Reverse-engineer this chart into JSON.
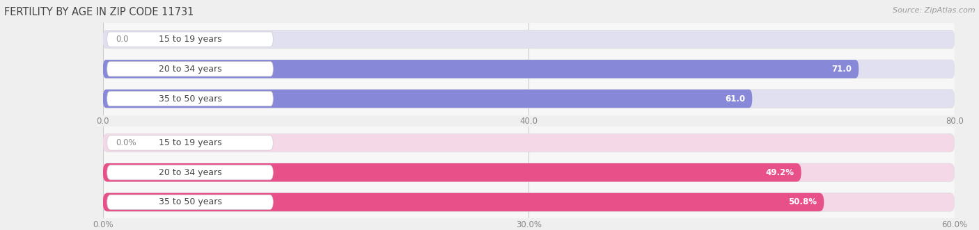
{
  "title": "FERTILITY BY AGE IN ZIP CODE 11731",
  "source": "Source: ZipAtlas.com",
  "top_chart": {
    "categories": [
      "15 to 19 years",
      "20 to 34 years",
      "35 to 50 years"
    ],
    "values": [
      0.0,
      71.0,
      61.0
    ],
    "value_labels": [
      "0.0",
      "71.0",
      "61.0"
    ],
    "xlim_max": 80.0,
    "xticks": [
      0.0,
      40.0,
      80.0
    ],
    "xtick_labels": [
      "0.0",
      "40.0",
      "80.0"
    ],
    "bar_color": "#8888d8",
    "bar_bg_color": "#e0e0f0",
    "label_bg_color": "#ffffff",
    "label_text_color": "#444444",
    "value_label_inside_color": "#ffffff",
    "value_label_outside_color": "#888888"
  },
  "bottom_chart": {
    "categories": [
      "15 to 19 years",
      "20 to 34 years",
      "35 to 50 years"
    ],
    "values": [
      0.0,
      49.2,
      50.8
    ],
    "value_labels": [
      "0.0%",
      "49.2%",
      "50.8%"
    ],
    "xlim_max": 60.0,
    "xticks": [
      0.0,
      30.0,
      60.0
    ],
    "xtick_labels": [
      "0.0%",
      "30.0%",
      "60.0%"
    ],
    "bar_color": "#e8508a",
    "bar_bg_color": "#f5d8e8",
    "label_bg_color": "#ffffff",
    "label_text_color": "#444444",
    "value_label_inside_color": "#ffffff",
    "value_label_outside_color": "#888888"
  },
  "fig_bg_color": "#efefef",
  "panel_bg_color": "#f7f7f7",
  "title_fontsize": 10.5,
  "source_fontsize": 8,
  "label_fontsize": 9,
  "tick_fontsize": 8.5,
  "value_fontsize": 8.5
}
